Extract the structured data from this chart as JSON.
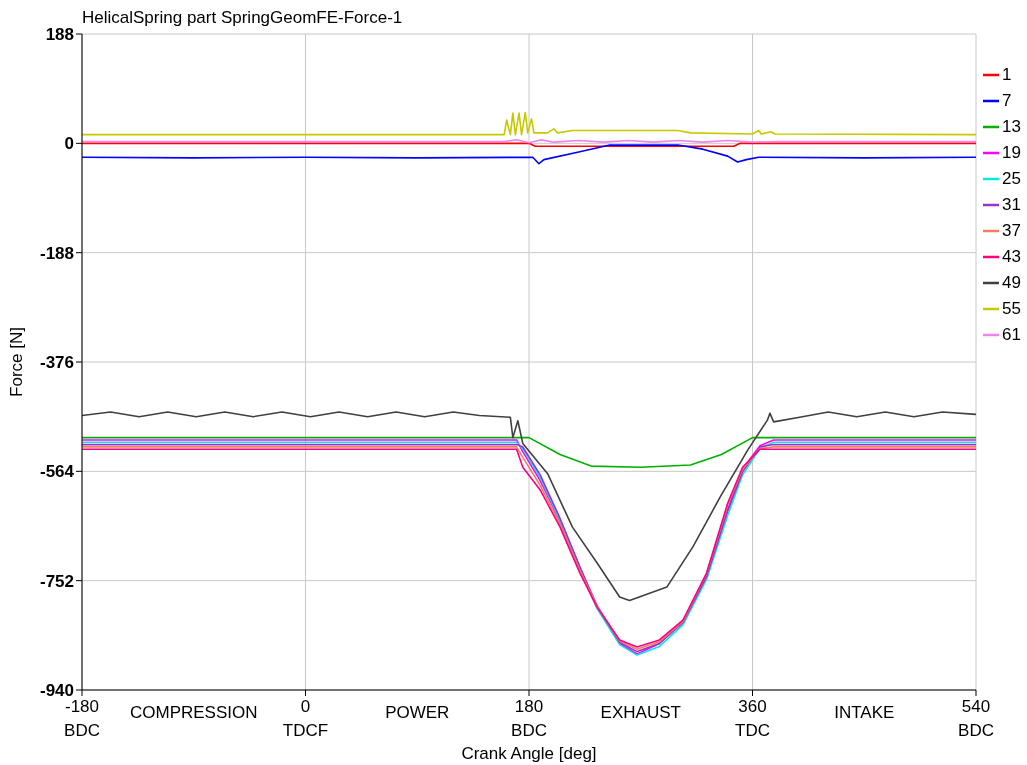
{
  "chart_data": {
    "type": "line",
    "title": "HelicalSpring part SpringGeomFE-Force-1",
    "xlabel": "Crank Angle [deg]",
    "ylabel": "Force [N]",
    "xlim": [
      -180,
      540
    ],
    "xticks": [
      {
        "value": -180,
        "label": "-180\nBDC"
      },
      {
        "value": 0,
        "label": "0\nTDCF"
      },
      {
        "value": 180,
        "label": "180\nBDC"
      },
      {
        "value": 360,
        "label": "360\nTDC"
      },
      {
        "value": 540,
        "label": "540\nBDC"
      }
    ],
    "ylim": [
      -940,
      188
    ],
    "yticks": [
      188,
      0,
      -188,
      -376,
      -564,
      -752,
      -940
    ],
    "grid": true,
    "legend": "right",
    "line_style": "solid",
    "annotations": [
      "COMPRESSION",
      "POWER",
      "EXHAUST",
      "INTAKE"
    ],
    "series": [
      {
        "name": "1",
        "color": "#ff0000",
        "x": [
          -180,
          180,
          185,
          345,
          350,
          540
        ],
        "values": [
          0,
          0,
          -5,
          -5,
          0,
          0
        ]
      },
      {
        "name": "7",
        "color": "#0000ff",
        "x": [
          -180,
          -90,
          0,
          90,
          183,
          188,
          192,
          220,
          245,
          300,
          320,
          340,
          348,
          355,
          365,
          450,
          540
        ],
        "values": [
          -24,
          -25,
          -24,
          -25,
          -24,
          -35,
          -28,
          -15,
          -3,
          -3,
          -10,
          -22,
          -32,
          -28,
          -24,
          -25,
          -24
        ]
      },
      {
        "name": "13",
        "color": "#00b000",
        "x": [
          -180,
          0,
          180,
          205,
          230,
          270,
          310,
          335,
          360,
          540
        ],
        "values": [
          -506,
          -506,
          -506,
          -535,
          -555,
          -557,
          -553,
          -535,
          -506,
          -506
        ]
      },
      {
        "name": "19",
        "color": "#ff00ff",
        "x": [
          -180,
          0,
          170,
          175,
          189,
          205,
          221,
          235,
          253,
          267,
          285,
          304,
          323,
          340,
          352,
          366,
          377,
          540
        ],
        "values": [
          -510,
          -510,
          -510,
          -530,
          -580,
          -650,
          -735,
          -800,
          -860,
          -878,
          -860,
          -822,
          -745,
          -630,
          -560,
          -520,
          -510,
          -510
        ]
      },
      {
        "name": "25",
        "color": "#00e8e8",
        "x": [
          -180,
          0,
          170,
          175,
          189,
          205,
          221,
          235,
          253,
          267,
          285,
          304,
          323,
          340,
          352,
          366,
          377,
          540
        ],
        "values": [
          -514,
          -514,
          -514,
          -525,
          -575,
          -648,
          -730,
          -800,
          -862,
          -880,
          -865,
          -828,
          -750,
          -640,
          -570,
          -525,
          -514,
          -514
        ]
      },
      {
        "name": "31",
        "color": "#9933cc",
        "x": [
          -180,
          0,
          170,
          175,
          189,
          205,
          221,
          235,
          253,
          267,
          285,
          304,
          323,
          340,
          352,
          366,
          377,
          540
        ],
        "values": [
          -518,
          -518,
          -518,
          -522,
          -570,
          -645,
          -728,
          -796,
          -858,
          -874,
          -860,
          -824,
          -745,
          -632,
          -565,
          -522,
          -518,
          -518
        ]
      },
      {
        "name": "37",
        "color": "#f08060",
        "x": [
          -180,
          0,
          170,
          175,
          189,
          205,
          221,
          235,
          253,
          267,
          285,
          304,
          323,
          340,
          352,
          366,
          377,
          540
        ],
        "values": [
          -522,
          -522,
          -522,
          -540,
          -588,
          -655,
          -735,
          -796,
          -856,
          -870,
          -857,
          -822,
          -740,
          -622,
          -560,
          -525,
          -522,
          -522
        ]
      },
      {
        "name": "43",
        "color": "#ff0080",
        "x": [
          -180,
          0,
          170,
          175,
          189,
          205,
          221,
          235,
          253,
          267,
          285,
          304,
          323,
          340,
          352,
          366,
          377,
          540
        ],
        "values": [
          -526,
          -526,
          -526,
          -557,
          -596,
          -660,
          -739,
          -798,
          -854,
          -866,
          -854,
          -820,
          -739,
          -619,
          -557,
          -526,
          -526,
          -526
        ]
      },
      {
        "name": "49",
        "color": "#404040",
        "x": [
          -180,
          -157,
          -134,
          -111,
          -88,
          -65,
          -42,
          -19,
          4,
          27,
          50,
          73,
          96,
          119,
          140,
          165,
          167,
          171,
          175,
          195,
          215,
          235,
          253,
          261,
          291,
          312,
          334,
          356,
          372,
          374,
          377,
          398,
          421,
          444,
          467,
          490,
          513,
          540
        ],
        "values": [
          -468,
          -462,
          -470,
          -462,
          -470,
          -462,
          -470,
          -462,
          -470,
          -462,
          -470,
          -462,
          -470,
          -462,
          -468,
          -471,
          -506,
          -477,
          -516,
          -568,
          -660,
          -722,
          -780,
          -786,
          -763,
          -694,
          -608,
          -528,
          -476,
          -464,
          -479,
          -471,
          -462,
          -470,
          -462,
          -470,
          -462,
          -466
        ]
      },
      {
        "name": "55",
        "color": "#c8c800",
        "x": [
          -180,
          160,
          162,
          165,
          167,
          169,
          172,
          174,
          177,
          179,
          182,
          184,
          195,
          200,
          203,
          215,
          250,
          300,
          310,
          360,
          365,
          367,
          375,
          378,
          540
        ],
        "values": [
          15,
          15,
          40,
          15,
          52,
          15,
          52,
          15,
          53,
          18,
          42,
          18,
          18,
          25,
          18,
          22,
          22,
          22,
          18,
          16,
          22,
          16,
          20,
          16,
          15
        ]
      },
      {
        "name": "61",
        "color": "#ee82ee",
        "x": [
          -180,
          160,
          170,
          180,
          190,
          200,
          220,
          240,
          260,
          280,
          300,
          320,
          340,
          360,
          380,
          540
        ],
        "values": [
          3,
          3,
          6,
          1,
          6,
          2,
          5,
          2,
          5,
          2,
          5,
          2,
          5,
          2,
          3,
          3
        ]
      }
    ]
  }
}
